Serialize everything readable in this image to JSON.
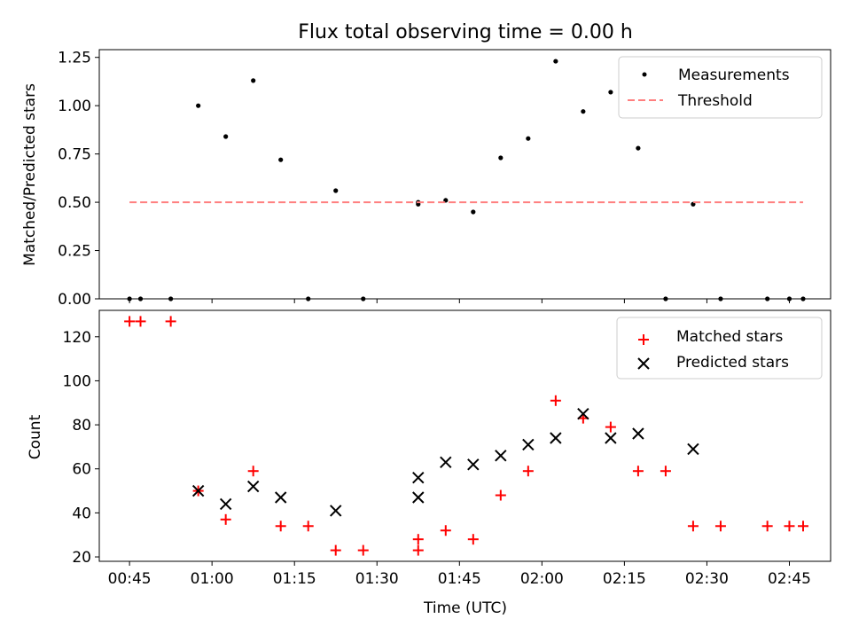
{
  "title": "Flux total observing time = 0.00 h",
  "xlabel": "Time (UTC)",
  "x_tick_labels": [
    "00:45",
    "01:00",
    "01:15",
    "01:30",
    "01:45",
    "02:00",
    "02:15",
    "02:30",
    "02:45"
  ],
  "chart_data": [
    {
      "type": "scatter",
      "ylabel": "Matched/Predicted stars",
      "ylim": [
        0,
        1.29
      ],
      "xlim": [
        "00:39:30",
        "02:52:30"
      ],
      "y_ticks": [
        "0.00",
        "0.25",
        "0.50",
        "0.75",
        "1.00",
        "1.25"
      ],
      "legend_position": "top-right",
      "series": [
        {
          "name": "Measurements",
          "color": "#000000",
          "marker": "dot",
          "points": [
            {
              "x": "00:45:00",
              "y": 0.0
            },
            {
              "x": "00:47:00",
              "y": 0.0
            },
            {
              "x": "00:52:30",
              "y": 0.0
            },
            {
              "x": "00:57:30",
              "y": 1.0
            },
            {
              "x": "01:02:30",
              "y": 0.84
            },
            {
              "x": "01:07:30",
              "y": 1.13
            },
            {
              "x": "01:12:30",
              "y": 0.72
            },
            {
              "x": "01:17:30",
              "y": 0.0
            },
            {
              "x": "01:22:30",
              "y": 0.56
            },
            {
              "x": "01:27:30",
              "y": 0.0
            },
            {
              "x": "01:37:30",
              "y": 0.49
            },
            {
              "x": "01:37:30",
              "y": 0.5
            },
            {
              "x": "01:42:30",
              "y": 0.51
            },
            {
              "x": "01:47:30",
              "y": 0.45
            },
            {
              "x": "01:52:30",
              "y": 0.73
            },
            {
              "x": "01:57:30",
              "y": 0.83
            },
            {
              "x": "02:02:30",
              "y": 1.23
            },
            {
              "x": "02:07:30",
              "y": 0.97
            },
            {
              "x": "02:12:30",
              "y": 1.07
            },
            {
              "x": "02:17:30",
              "y": 0.78
            },
            {
              "x": "02:22:30",
              "y": 0.0
            },
            {
              "x": "02:27:30",
              "y": 0.49
            },
            {
              "x": "02:32:30",
              "y": 0.0
            },
            {
              "x": "02:41:00",
              "y": 0.0
            },
            {
              "x": "02:45:00",
              "y": 0.0
            },
            {
              "x": "02:47:30",
              "y": 0.0
            }
          ]
        },
        {
          "name": "Threshold",
          "color": "#ff7f7f",
          "marker": "dashed-line",
          "points": [
            {
              "x": "00:45:00",
              "y": 0.5
            },
            {
              "x": "02:47:30",
              "y": 0.5
            }
          ]
        }
      ]
    },
    {
      "type": "scatter",
      "ylabel": "Count",
      "ylim": [
        18,
        132
      ],
      "xlim": [
        "00:39:30",
        "02:52:30"
      ],
      "y_ticks": [
        "20",
        "40",
        "60",
        "80",
        "100",
        "120"
      ],
      "legend_position": "top-right",
      "series": [
        {
          "name": "Matched stars",
          "color": "#ff0000",
          "marker": "plus",
          "points": [
            {
              "x": "00:45:00",
              "y": 127
            },
            {
              "x": "00:47:00",
              "y": 127
            },
            {
              "x": "00:52:30",
              "y": 127
            },
            {
              "x": "00:57:30",
              "y": 50
            },
            {
              "x": "01:02:30",
              "y": 37
            },
            {
              "x": "01:07:30",
              "y": 59
            },
            {
              "x": "01:12:30",
              "y": 34
            },
            {
              "x": "01:17:30",
              "y": 34
            },
            {
              "x": "01:22:30",
              "y": 23
            },
            {
              "x": "01:27:30",
              "y": 23
            },
            {
              "x": "01:37:30",
              "y": 23
            },
            {
              "x": "01:37:30",
              "y": 28
            },
            {
              "x": "01:42:30",
              "y": 32
            },
            {
              "x": "01:47:30",
              "y": 28
            },
            {
              "x": "01:52:30",
              "y": 48
            },
            {
              "x": "01:57:30",
              "y": 59
            },
            {
              "x": "02:02:30",
              "y": 91
            },
            {
              "x": "02:07:30",
              "y": 83
            },
            {
              "x": "02:12:30",
              "y": 79
            },
            {
              "x": "02:17:30",
              "y": 59
            },
            {
              "x": "02:22:30",
              "y": 59
            },
            {
              "x": "02:27:30",
              "y": 34
            },
            {
              "x": "02:32:30",
              "y": 34
            },
            {
              "x": "02:41:00",
              "y": 34
            },
            {
              "x": "02:45:00",
              "y": 34
            },
            {
              "x": "02:47:30",
              "y": 34
            }
          ]
        },
        {
          "name": "Predicted stars",
          "color": "#000000",
          "marker": "x",
          "points": [
            {
              "x": "00:57:30",
              "y": 50
            },
            {
              "x": "01:02:30",
              "y": 44
            },
            {
              "x": "01:07:30",
              "y": 52
            },
            {
              "x": "01:12:30",
              "y": 47
            },
            {
              "x": "01:22:30",
              "y": 41
            },
            {
              "x": "01:37:30",
              "y": 47
            },
            {
              "x": "01:37:30",
              "y": 56
            },
            {
              "x": "01:42:30",
              "y": 63
            },
            {
              "x": "01:47:30",
              "y": 62
            },
            {
              "x": "01:52:30",
              "y": 66
            },
            {
              "x": "01:57:30",
              "y": 71
            },
            {
              "x": "02:02:30",
              "y": 74
            },
            {
              "x": "02:07:30",
              "y": 85
            },
            {
              "x": "02:12:30",
              "y": 74
            },
            {
              "x": "02:17:30",
              "y": 76
            },
            {
              "x": "02:27:30",
              "y": 69
            }
          ]
        }
      ]
    }
  ]
}
